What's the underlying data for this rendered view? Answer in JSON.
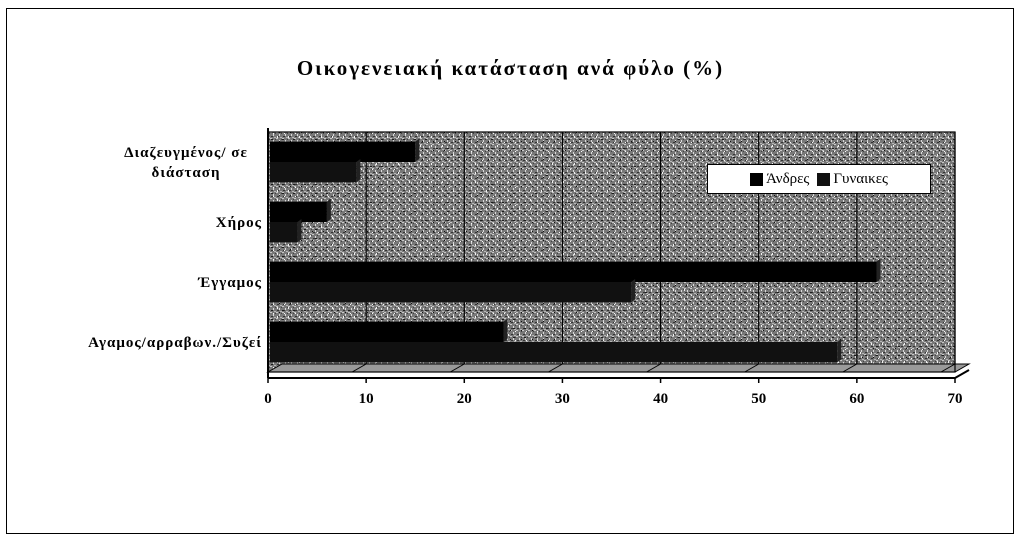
{
  "chart_data": {
    "type": "bar",
    "orientation": "horizontal",
    "title": "Οικογενειακή κατάσταση ανά φύλο (%)",
    "categories": [
      "Αγαμος/αρραβων./Συζεί",
      "Έγγαμος",
      "Χήρος",
      "Διαζευγμένος/ σε διάσταση"
    ],
    "category_lines": [
      [
        "Αγαμος/αρραβων./Συζεί"
      ],
      [
        "Έγγαμος"
      ],
      [
        "Χήρος"
      ],
      [
        "Διαζευγμένος/ σε",
        "διάσταση"
      ]
    ],
    "series": [
      {
        "name": "Άνδρες",
        "values": [
          24,
          62,
          6,
          15
        ],
        "color": "#000000"
      },
      {
        "name": "Γυναικες",
        "values": [
          58,
          37,
          3,
          9
        ],
        "color": "#111111"
      }
    ],
    "xlim": [
      0,
      70
    ],
    "xticks": [
      "0",
      "10",
      "20",
      "30",
      "40",
      "50",
      "60",
      "70"
    ],
    "grid": true,
    "legend_position": "top-right",
    "plot_background": "#6e6e6e"
  }
}
